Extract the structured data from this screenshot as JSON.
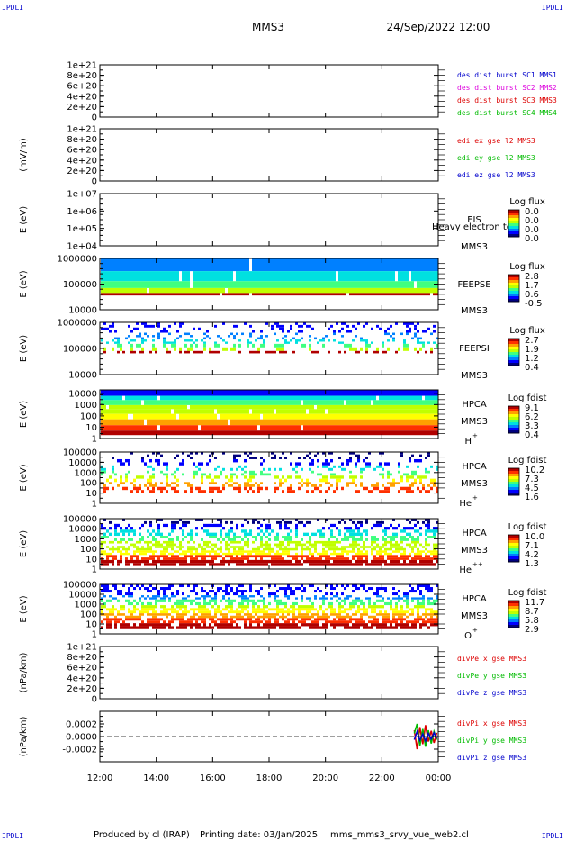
{
  "header": {
    "corner_label": "IPDLI",
    "spacecraft": "MMS3",
    "date": "24/Sep/2022 12:00"
  },
  "footer": {
    "produced_by": "Produced by cl (IRAP)",
    "printing_date": "Printing date: 03/Jan/2025",
    "script": "mms_mms3_srvy_vue_web2.cl"
  },
  "colors": {
    "red": "#dd0000",
    "magenta": "#dd00dd",
    "green": "#00bb00",
    "blue": "#0000cc",
    "spectrogram_scale": [
      "#00007f",
      "#0000ff",
      "#0080ff",
      "#00e0e0",
      "#40ff80",
      "#c0ff00",
      "#ffff00",
      "#ffa000",
      "#ff3000",
      "#b00000"
    ]
  },
  "chart_data": [
    {
      "id": "des-dist",
      "type": "line",
      "ylabel": "",
      "ylim": [
        0,
        1e+21
      ],
      "yticks": [
        "1e+21",
        "8e+20",
        "6e+20",
        "4e+20",
        "2e+20",
        "0"
      ],
      "ytick_values": [
        1e+21,
        8e+20,
        6e+20,
        4e+20,
        2e+20,
        0
      ],
      "zero_dashed": true,
      "legend": [
        {
          "text": "des dist burst SC1 MMS1",
          "color": "blue"
        },
        {
          "text": "des dist burst SC2 MMS2",
          "color": "magenta"
        },
        {
          "text": "des dist burst SC3 MMS3",
          "color": "red"
        },
        {
          "text": "des dist burst SC4 MMS4",
          "color": "green"
        }
      ],
      "series": []
    },
    {
      "id": "edi",
      "type": "line",
      "ylabel": "(mV/m)",
      "ylim": [
        0,
        1e+21
      ],
      "yticks": [
        "1e+21",
        "8e+20",
        "6e+20",
        "4e+20",
        "2e+20",
        "0"
      ],
      "ytick_values": [
        1e+21,
        8e+20,
        6e+20,
        4e+20,
        2e+20,
        0
      ],
      "zero_dashed": true,
      "legend": [
        {
          "text": "edi ex gse l2 MMS3",
          "color": "red"
        },
        {
          "text": "edi ey gse l2 MMS3",
          "color": "green"
        },
        {
          "text": "edi ez gse l2 MMS3",
          "color": "blue"
        }
      ],
      "series": []
    },
    {
      "id": "eis",
      "type": "heatmap",
      "ylabel": "E (eV)",
      "yscale": "log",
      "ylim": [
        10000.0,
        10000000.0
      ],
      "yticks": [
        "1e+07",
        "1e+06",
        "1e+05",
        "1e+04"
      ],
      "ytick_values": [
        10000000.0,
        1000000.0,
        100000.0,
        10000.0
      ],
      "labels": [
        "EIS",
        "MMS3"
      ],
      "overlay_text": "Heavy electron to",
      "colorbar": {
        "title": "Log flux",
        "ticks": [
          "0.0",
          "0.0",
          "0.0",
          "0.0"
        ]
      },
      "fill": "none"
    },
    {
      "id": "feepse",
      "type": "heatmap",
      "ylabel": "E (eV)",
      "yscale": "log",
      "ylim": [
        10000.0,
        1000000.0
      ],
      "yticks": [
        "1000000",
        "100000",
        "10000"
      ],
      "ytick_values": [
        1000000.0,
        100000.0,
        10000.0
      ],
      "labels": [
        "FEEPSE",
        "MMS3"
      ],
      "colorbar": {
        "title": "Log flux",
        "ticks": [
          "2.8",
          "1.7",
          "0.6",
          "-0.5"
        ]
      },
      "fill": "dense",
      "bands": [
        [
          1000000.0,
          0.1
        ],
        [
          320000.0,
          0.2
        ],
        [
          130000.0,
          0.3
        ],
        [
          70000.0,
          0.4
        ],
        [
          45000.0,
          0.55
        ],
        [
          36000.0,
          0.95
        ]
      ]
    },
    {
      "id": "feepsi",
      "type": "heatmap",
      "ylabel": "E (eV)",
      "yscale": "log",
      "ylim": [
        10000.0,
        1000000.0
      ],
      "yticks": [
        "1000000",
        "100000",
        "10000"
      ],
      "ytick_values": [
        1000000.0,
        100000.0,
        10000.0
      ],
      "labels": [
        "FEEPSI",
        "MMS3"
      ],
      "colorbar": {
        "title": "Log flux",
        "ticks": [
          "2.7",
          "1.9",
          "1.2",
          "0.4"
        ]
      },
      "fill": "sparse",
      "bands": [
        [
          400000.0,
          0.1
        ],
        [
          220000.0,
          0.2
        ],
        [
          150000.0,
          0.35
        ],
        [
          110000.0,
          0.45
        ],
        [
          80000.0,
          0.6
        ],
        [
          65000.0,
          0.95
        ]
      ]
    },
    {
      "id": "hpca-h",
      "type": "heatmap",
      "ylabel": "E (eV)",
      "yscale": "log",
      "ylim": [
        1,
        20000.0
      ],
      "yticks": [
        "10000",
        "1000",
        "100",
        "10",
        "1"
      ],
      "ytick_values": [
        10000.0,
        1000.0,
        100.0,
        10.0,
        1
      ],
      "labels": [
        "HPCA",
        "MMS3",
        "H",
        "+"
      ],
      "colorbar": {
        "title": "Log fdist",
        "ticks": [
          "9.1",
          "6.2",
          "3.3",
          "0.4"
        ]
      },
      "fill": "dense",
      "bands": [
        [
          20000.0,
          0.05
        ],
        [
          6000,
          0.15
        ],
        [
          2500,
          0.3
        ],
        [
          900,
          0.4
        ],
        [
          400,
          0.5
        ],
        [
          150,
          0.6
        ],
        [
          50,
          0.7
        ],
        [
          15,
          0.8
        ],
        [
          5,
          0.9
        ],
        [
          2,
          0.97
        ]
      ]
    },
    {
      "id": "hpca-he",
      "type": "heatmap",
      "ylabel": "E (eV)",
      "yscale": "log",
      "ylim": [
        1,
        100000.0
      ],
      "yticks": [
        "100000",
        "10000",
        "1000",
        "100",
        "10",
        "1"
      ],
      "ytick_values": [
        100000.0,
        10000.0,
        1000.0,
        100.0,
        10.0,
        1
      ],
      "labels": [
        "HPCA",
        "MMS3",
        "He",
        "+"
      ],
      "colorbar": {
        "title": "Log fdist",
        "ticks": [
          "10.2",
          "7.3",
          "4.5",
          "1.6"
        ]
      },
      "fill": "sparse",
      "bands": [
        [
          20000.0,
          0.05
        ],
        [
          5000,
          0.15
        ],
        [
          1500,
          0.3
        ],
        [
          500,
          0.42
        ],
        [
          250,
          0.55
        ],
        [
          120,
          0.62
        ],
        [
          40,
          0.8
        ],
        [
          10,
          0.9
        ]
      ]
    },
    {
      "id": "hpca-hepp",
      "type": "heatmap",
      "ylabel": "E (eV)",
      "yscale": "log",
      "ylim": [
        1,
        100000.0
      ],
      "yticks": [
        "100000",
        "10000",
        "1000",
        "100",
        "10",
        "1"
      ],
      "ytick_values": [
        100000.0,
        10000.0,
        1000.0,
        100.0,
        10.0,
        1
      ],
      "labels": [
        "HPCA",
        "MMS3",
        "He",
        "++"
      ],
      "colorbar": {
        "title": "Log fdist",
        "ticks": [
          "10.0",
          "7.1",
          "4.2",
          "1.3"
        ]
      },
      "fill": "medium",
      "bands": [
        [
          30000.0,
          0.05
        ],
        [
          8000,
          0.12
        ],
        [
          2000,
          0.28
        ],
        [
          600,
          0.4
        ],
        [
          200,
          0.5
        ],
        [
          70,
          0.6
        ],
        [
          25,
          0.72
        ],
        [
          8,
          0.85
        ],
        [
          2,
          0.95
        ]
      ]
    },
    {
      "id": "hpca-o",
      "type": "heatmap",
      "ylabel": "E (eV)",
      "yscale": "log",
      "ylim": [
        1,
        100000.0
      ],
      "yticks": [
        "100000",
        "10000",
        "1000",
        "100",
        "10",
        "1"
      ],
      "ytick_values": [
        100000.0,
        10000.0,
        1000.0,
        100.0,
        10.0,
        1
      ],
      "labels": [
        "HPCA",
        "MMS3",
        "O",
        "+"
      ],
      "colorbar": {
        "title": "Log fdist",
        "ticks": [
          "11.7",
          "8.7",
          "5.8",
          "2.9"
        ]
      },
      "fill": "medium",
      "bands": [
        [
          8000,
          0.1
        ],
        [
          3000,
          0.25
        ],
        [
          800,
          0.42
        ],
        [
          400,
          0.5
        ],
        [
          120,
          0.65
        ],
        [
          40,
          0.75
        ],
        [
          12,
          0.85
        ],
        [
          3,
          0.95
        ]
      ]
    },
    {
      "id": "divpe",
      "type": "line",
      "ylabel": "(nPa/km)",
      "ylim": [
        0,
        1e+21
      ],
      "yticks": [
        "1e+21",
        "8e+20",
        "6e+20",
        "4e+20",
        "2e+20",
        "0"
      ],
      "ytick_values": [
        1e+21,
        8e+20,
        6e+20,
        4e+20,
        2e+20,
        0
      ],
      "zero_dashed": true,
      "legend": [
        {
          "text": "divPe x gse MMS3",
          "color": "red"
        },
        {
          "text": "divPe y gse MMS3",
          "color": "green"
        },
        {
          "text": "divPe z gse MMS3",
          "color": "blue"
        }
      ],
      "series": []
    },
    {
      "id": "divpi",
      "type": "line",
      "ylabel": "(nPa/km)",
      "ylim": [
        -0.0004,
        0.0004
      ],
      "yticks": [
        "0.0002",
        "0.0000",
        "-0.0002"
      ],
      "ytick_values": [
        0.0002,
        0,
        -0.0002
      ],
      "zero_dashed": true,
      "legend": [
        {
          "text": "divPi x gse MMS3",
          "color": "red"
        },
        {
          "text": "divPi y gse MMS3",
          "color": "green"
        },
        {
          "text": "divPi z gse MMS3",
          "color": "blue"
        }
      ],
      "series": [
        {
          "name": "divPi x gse MMS3",
          "color": "red",
          "x": [
            23.15,
            23.25,
            23.35,
            23.45,
            23.55,
            23.65,
            23.75,
            23.85,
            23.95
          ],
          "y": [
            0.0001,
            -0.0002,
            0.00015,
            -0.00012,
            0.00018,
            -8e-05,
            9e-05,
            -0.0001,
            6e-05
          ]
        },
        {
          "name": "divPi y gse MMS3",
          "color": "green",
          "x": [
            23.15,
            23.25,
            23.35,
            23.45,
            23.55,
            23.65,
            23.75,
            23.85,
            23.95
          ],
          "y": [
            5e-05,
            0.0002,
            -0.00015,
            0.00012,
            -0.00016,
            0.0001,
            -0.00011,
            8e-05,
            -5e-05
          ]
        },
        {
          "name": "divPi z gse MMS3",
          "color": "blue",
          "x": [
            23.15,
            23.25,
            23.35,
            23.45,
            23.55,
            23.65,
            23.75,
            23.85,
            23.95
          ],
          "y": [
            -5e-05,
            8e-05,
            -6e-05,
            4e-05,
            -7e-05,
            5e-05,
            -4e-05,
            6e-05,
            -3e-05
          ]
        }
      ]
    }
  ],
  "time_axis": {
    "xlim": [
      12,
      24
    ],
    "ticks": [
      "12:00",
      "14:00",
      "16:00",
      "18:00",
      "20:00",
      "22:00",
      "00:00"
    ],
    "tick_values": [
      12,
      14,
      16,
      18,
      20,
      22,
      24
    ]
  }
}
